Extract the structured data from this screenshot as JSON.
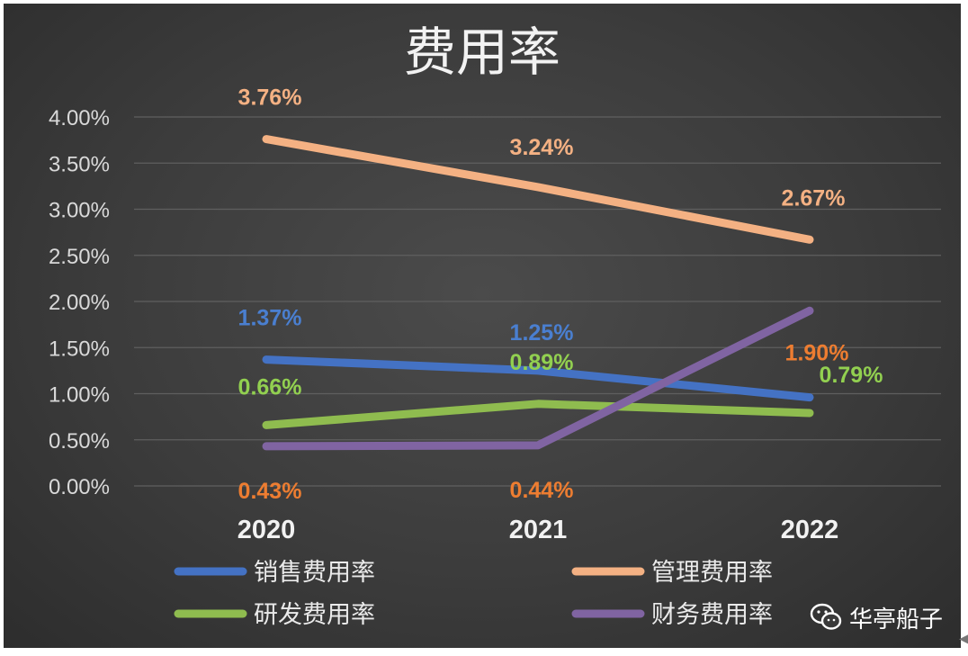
{
  "chart_data": {
    "type": "line",
    "title": "费用率",
    "categories": [
      "2020",
      "2021",
      "2022"
    ],
    "y_ticks": [
      "0.00%",
      "0.50%",
      "1.00%",
      "1.50%",
      "2.00%",
      "2.50%",
      "3.00%",
      "3.50%",
      "4.00%"
    ],
    "ylim": [
      0,
      4
    ],
    "grid": true,
    "legend_position": "bottom",
    "series": [
      {
        "name": "销售费用率",
        "values": [
          1.37,
          1.25,
          0.96
        ],
        "labels": [
          "1.37%",
          "1.25%",
          ""
        ],
        "color": "#4472c4",
        "label_color": "#4a7fd0"
      },
      {
        "name": "管理费用率",
        "values": [
          3.76,
          3.24,
          2.67
        ],
        "labels": [
          "3.76%",
          "3.24%",
          "2.67%"
        ],
        "color": "#f4b183",
        "label_color": "#f4b183"
      },
      {
        "name": "研发费用率",
        "values": [
          0.66,
          0.89,
          0.79
        ],
        "labels": [
          "0.66%",
          "0.89%",
          "0.79%"
        ],
        "color": "#8fbc4f",
        "label_color": "#92d050"
      },
      {
        "name": "财务费用率",
        "values": [
          0.43,
          0.44,
          1.9
        ],
        "labels": [
          "0.43%",
          "0.44%",
          "1.90%"
        ],
        "color": "#8064a2",
        "label_color": "#ed7d31"
      }
    ]
  },
  "watermark": {
    "text": "华亭船子",
    "icon": "wechat-icon"
  }
}
